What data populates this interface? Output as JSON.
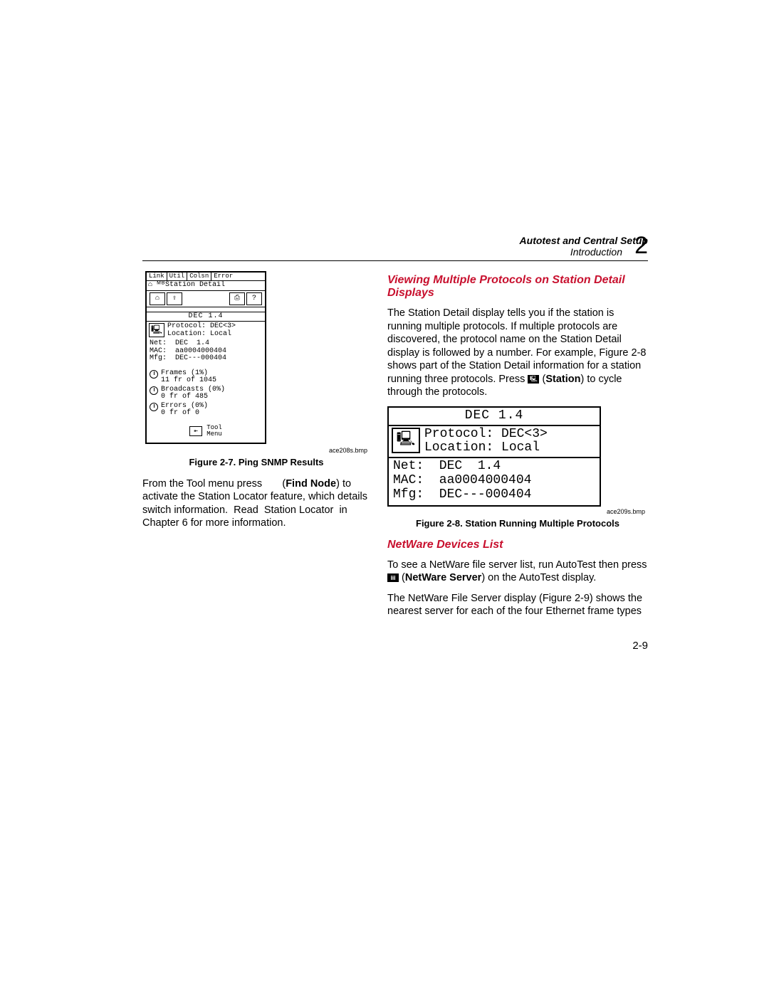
{
  "header": {
    "title": "Autotest and Central Setup",
    "subtitle": "Introduction",
    "chapter": "2"
  },
  "left": {
    "device": {
      "tabs": [
        "Link",
        "Util",
        "Colsn",
        "Error"
      ],
      "title_prefix": "⌂ ᴹᴮ",
      "title": "Station Detail",
      "dec_head": "DEC  1.4",
      "protocol_line1": "Protocol: DEC<3>",
      "protocol_line2": "Location: Local",
      "net_block": "Net:  DEC  1.4\nMAC:  aa0004000404\nMfg:  DEC---000404",
      "stat1a": "Frames (1%)",
      "stat1b": "11 fr of 1045",
      "stat2a": "Broadcasts (0%)",
      "stat2b": "0 fr of 485",
      "stat3a": "Errors (0%)",
      "stat3b": "0 fr of 0",
      "tool_label": "Tool\nMenu"
    },
    "bmp": "ace208s.bmp",
    "caption": "Figure 2-7. Ping SNMP Results",
    "para": "From the Tool menu press        (Find Node) to activate the Station Locator feature, which details switch information.  Read  Station Locator  in Chapter 6 for more information.",
    "find_node_bold": "Find Node"
  },
  "right": {
    "section1_title": "Viewing Multiple Protocols on Station Detail Displays",
    "para1_a": "The Station Detail display tells you if the station is running multiple protocols. If multiple protocols are discovered, the protocol name on the Station Detail display is followed by a number. For example, Figure 2-8 shows part of the Station Detail information for a station running three protocols. Press ",
    "station_bold": "Station",
    "para1_b": ") to cycle through the protocols.",
    "device2": {
      "head": "DEC  1.4",
      "line1": "Protocol: DEC<3>",
      "line2": "Location: Local",
      "net_block": "Net:  DEC  1.4\nMAC:  aa0004000404\nMfg:  DEC---000404"
    },
    "bmp2": "ace209s.bmp",
    "caption2": "Figure 2-8. Station Running Multiple Protocols",
    "section2_title": "NetWare Devices List",
    "para2_a": "To see a NetWare file server list, run AutoTest then press ",
    "netware_bold": "NetWare Server",
    "para2_b": ") on the AutoTest display.",
    "para3": "The NetWare File Server display (Figure 2-9) shows the nearest server for each of the four Ethernet frame types"
  },
  "page_number": "2-9"
}
